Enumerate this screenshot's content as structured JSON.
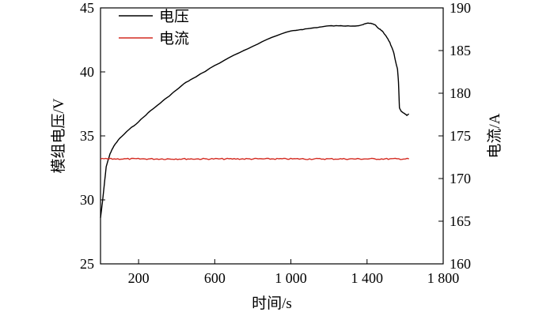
{
  "chart_data": {
    "type": "line",
    "xlabel": "时间/s",
    "ylabel_left": "模组电压/V",
    "ylabel_right": "电流/A",
    "xlim": [
      0,
      1800
    ],
    "ylim_left": [
      25,
      45
    ],
    "ylim_right": [
      160,
      190
    ],
    "xticks": [
      200,
      600,
      1000,
      1400,
      1800
    ],
    "xtick_labels": [
      "200",
      "600",
      "1 000",
      "1 400",
      "1 800"
    ],
    "yticks_left": [
      25,
      30,
      35,
      40,
      45
    ],
    "ytick_labels_left": [
      "25",
      "30",
      "35",
      "40",
      "45"
    ],
    "yticks_right": [
      160,
      165,
      170,
      175,
      180,
      185,
      190
    ],
    "ytick_labels_right": [
      "160",
      "165",
      "170",
      "175",
      "180",
      "185",
      "190"
    ],
    "grid": false,
    "legend_position": "top-left",
    "series": [
      {
        "name": "电压",
        "axis": "left",
        "color": "#000000",
        "x": [
          0,
          10,
          20,
          30,
          50,
          70,
          100,
          150,
          200,
          250,
          300,
          350,
          400,
          450,
          500,
          600,
          700,
          800,
          900,
          1000,
          1050,
          1100,
          1150,
          1200,
          1250,
          1300,
          1350,
          1380,
          1400,
          1420,
          1440,
          1460,
          1480,
          1500,
          1520,
          1540,
          1550,
          1560,
          1565,
          1570,
          1580,
          1590,
          1600,
          1610,
          1620
        ],
        "y": [
          28.6,
          29.8,
          31.2,
          32.6,
          33.6,
          34.2,
          34.8,
          35.5,
          36.1,
          36.8,
          37.4,
          38.0,
          38.6,
          39.2,
          39.6,
          40.5,
          41.3,
          42.0,
          42.7,
          43.2,
          43.3,
          43.4,
          43.5,
          43.6,
          43.6,
          43.6,
          43.6,
          43.7,
          43.8,
          43.8,
          43.7,
          43.4,
          43.2,
          42.8,
          42.3,
          41.5,
          40.8,
          40.2,
          39.2,
          37.2,
          36.9,
          36.8,
          36.7,
          36.6,
          36.7
        ]
      },
      {
        "name": "电流",
        "axis": "right",
        "color": "#d42a20",
        "x": [
          0,
          1620
        ],
        "y": [
          172.3,
          172.3
        ]
      }
    ]
  }
}
